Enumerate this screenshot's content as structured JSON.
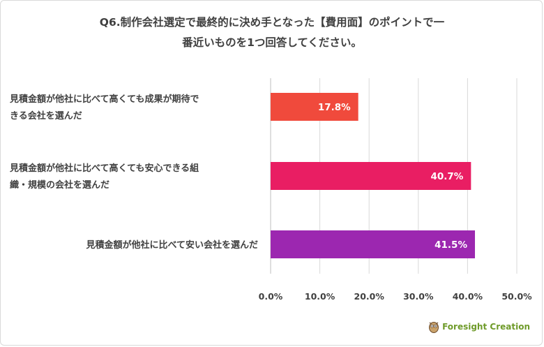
{
  "chart_data": {
    "type": "bar",
    "orientation": "horizontal",
    "title": "Q6.制作会社選定で最終的に決め手となった【費用面】のポイントで一番近いものを1つ回答してください。",
    "title_lines": [
      "Q6.制作会社選定で最終的に決め手となった【費用面】のポイントで一",
      "番近いものを1つ回答してください。"
    ],
    "categories": [
      [
        "見積金額が他社に比べて高くても成果が期待で",
        "きる会社を選んだ"
      ],
      [
        "見積金額が他社に比べて高くても安心できる組",
        "織・規模の会社を選んだ"
      ],
      [
        "見積金額が他社に比べて安い会社を選んだ"
      ]
    ],
    "values": [
      17.8,
      40.7,
      41.5
    ],
    "data_labels": [
      "17.8%",
      "40.7%",
      "41.5%"
    ],
    "colors": [
      "#f04a3c",
      "#e91e63",
      "#9c27b0"
    ],
    "xlim": [
      0,
      50
    ],
    "xticks": [
      "0.0%",
      "10.0%",
      "20.0%",
      "30.0%",
      "40.0%",
      "50.0%"
    ],
    "grid": true,
    "xlabel": "",
    "ylabel": ""
  },
  "logo": {
    "text": "Foresight Creation"
  }
}
